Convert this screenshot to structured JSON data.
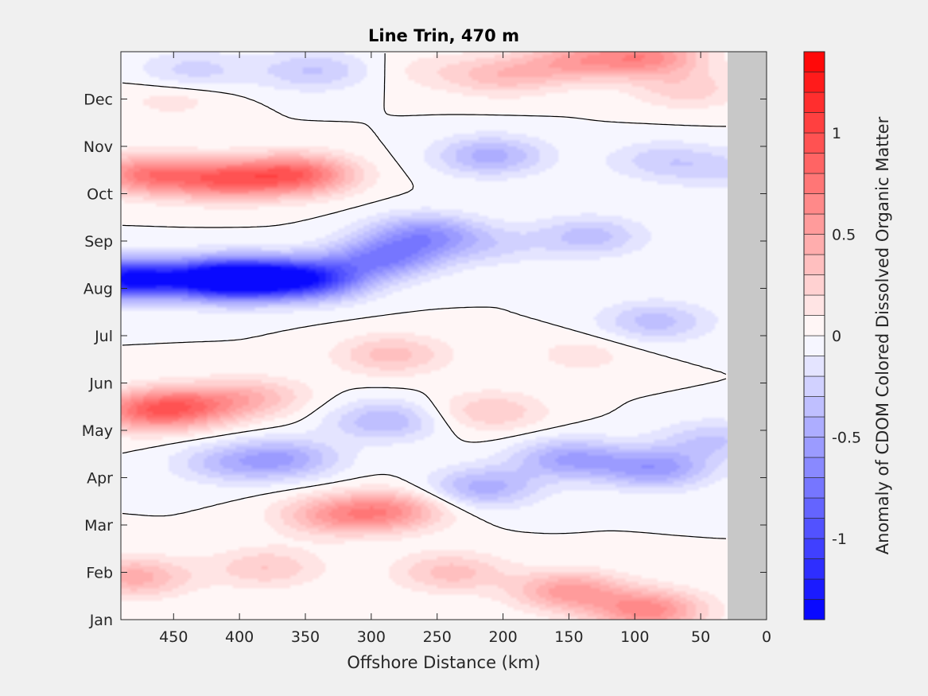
{
  "chart_data": {
    "type": "heatmap",
    "title": "Line Trin, 470 m",
    "xlabel": "Offshore Distance (km)",
    "ylabel": "",
    "xlim": [
      490,
      0
    ],
    "x_reversed": true,
    "x_ticks": [
      "450",
      "400",
      "350",
      "300",
      "250",
      "200",
      "150",
      "100",
      "50",
      "0"
    ],
    "x_tick_values": [
      450,
      400,
      350,
      300,
      250,
      200,
      150,
      100,
      50,
      0
    ],
    "y_ticks": [
      "Jan",
      "Feb",
      "Mar",
      "Apr",
      "May",
      "Jun",
      "Jul",
      "Aug",
      "Sep",
      "Oct",
      "Nov",
      "Dec"
    ],
    "y_tick_values": [
      1,
      2,
      3,
      4,
      5,
      6,
      7,
      8,
      9,
      10,
      11,
      12
    ],
    "ylim": [
      1,
      13
    ],
    "no_data_region_x": [
      30,
      0
    ],
    "colorbar": {
      "label": "Anomaly of CDOM Colored Dissolved Organic Matter",
      "range": [
        -1.4,
        1.4
      ],
      "levels": 28,
      "ticks": [
        "-1",
        "-0.5",
        "0",
        "0.5",
        "1"
      ],
      "tick_values": [
        -1,
        -0.5,
        0,
        0.5,
        1
      ],
      "colormap": "blue-white-red"
    },
    "colors": {
      "negative_max": "#0000ff",
      "zero": "#ffffff",
      "positive_max": "#ff0000",
      "no_data": "#c8c8c8",
      "figure_background": "#f0f0f0",
      "contour_zero": "#000000"
    },
    "grid": false,
    "features": [
      {
        "x": 485,
        "y": 8.2,
        "value": -1.3
      },
      {
        "x": 420,
        "y": 8.2,
        "value": -1.05
      },
      {
        "x": 390,
        "y": 8.2,
        "value": -1.0
      },
      {
        "x": 345,
        "y": 8.2,
        "value": -1.0
      },
      {
        "x": 290,
        "y": 8.65,
        "value": -0.65
      },
      {
        "x": 260,
        "y": 9.15,
        "value": -0.55
      },
      {
        "x": 210,
        "y": 10.8,
        "value": -0.45
      },
      {
        "x": 135,
        "y": 9.1,
        "value": -0.35
      },
      {
        "x": 85,
        "y": 7.3,
        "value": -0.35
      },
      {
        "x": 80,
        "y": 10.7,
        "value": -0.25
      },
      {
        "x": 30,
        "y": 10.5,
        "value": -0.2
      },
      {
        "x": 290,
        "y": 5.2,
        "value": -0.4
      },
      {
        "x": 365,
        "y": 4.4,
        "value": -0.45
      },
      {
        "x": 410,
        "y": 4.3,
        "value": -0.3
      },
      {
        "x": 215,
        "y": 3.8,
        "value": -0.45
      },
      {
        "x": 150,
        "y": 4.4,
        "value": -0.5
      },
      {
        "x": 85,
        "y": 4.2,
        "value": -0.55
      },
      {
        "x": 40,
        "y": 4.8,
        "value": -0.3
      },
      {
        "x": 210,
        "y": 8.9,
        "value": -0.2
      },
      {
        "x": 435,
        "y": 12.6,
        "value": -0.25
      },
      {
        "x": 345,
        "y": 12.6,
        "value": -0.3
      },
      {
        "x": 280,
        "y": 12.6,
        "value": -0.2
      },
      {
        "x": 410,
        "y": 10.3,
        "value": 0.75
      },
      {
        "x": 470,
        "y": 10.4,
        "value": 0.7
      },
      {
        "x": 355,
        "y": 10.4,
        "value": 0.8
      },
      {
        "x": 440,
        "y": 5.5,
        "value": 0.6
      },
      {
        "x": 475,
        "y": 5.4,
        "value": 0.55
      },
      {
        "x": 390,
        "y": 5.7,
        "value": 0.35
      },
      {
        "x": 285,
        "y": 6.6,
        "value": 0.35
      },
      {
        "x": 210,
        "y": 5.4,
        "value": 0.3
      },
      {
        "x": 140,
        "y": 6.6,
        "value": 0.15
      },
      {
        "x": 330,
        "y": 3.2,
        "value": 0.45
      },
      {
        "x": 285,
        "y": 3.3,
        "value": 0.55
      },
      {
        "x": 240,
        "y": 2.0,
        "value": 0.35
      },
      {
        "x": 150,
        "y": 1.6,
        "value": 0.55
      },
      {
        "x": 90,
        "y": 1.2,
        "value": 0.65
      },
      {
        "x": 480,
        "y": 1.9,
        "value": 0.45
      },
      {
        "x": 380,
        "y": 2.1,
        "value": 0.3
      },
      {
        "x": 270,
        "y": 12.6,
        "value": 0.3
      },
      {
        "x": 145,
        "y": 12.8,
        "value": 0.45
      },
      {
        "x": 90,
        "y": 12.9,
        "value": 0.6
      },
      {
        "x": 200,
        "y": 12.5,
        "value": 0.35
      },
      {
        "x": 450,
        "y": 12.0,
        "value": 0.15
      },
      {
        "x": 60,
        "y": 12.2,
        "value": 0.25
      }
    ]
  }
}
